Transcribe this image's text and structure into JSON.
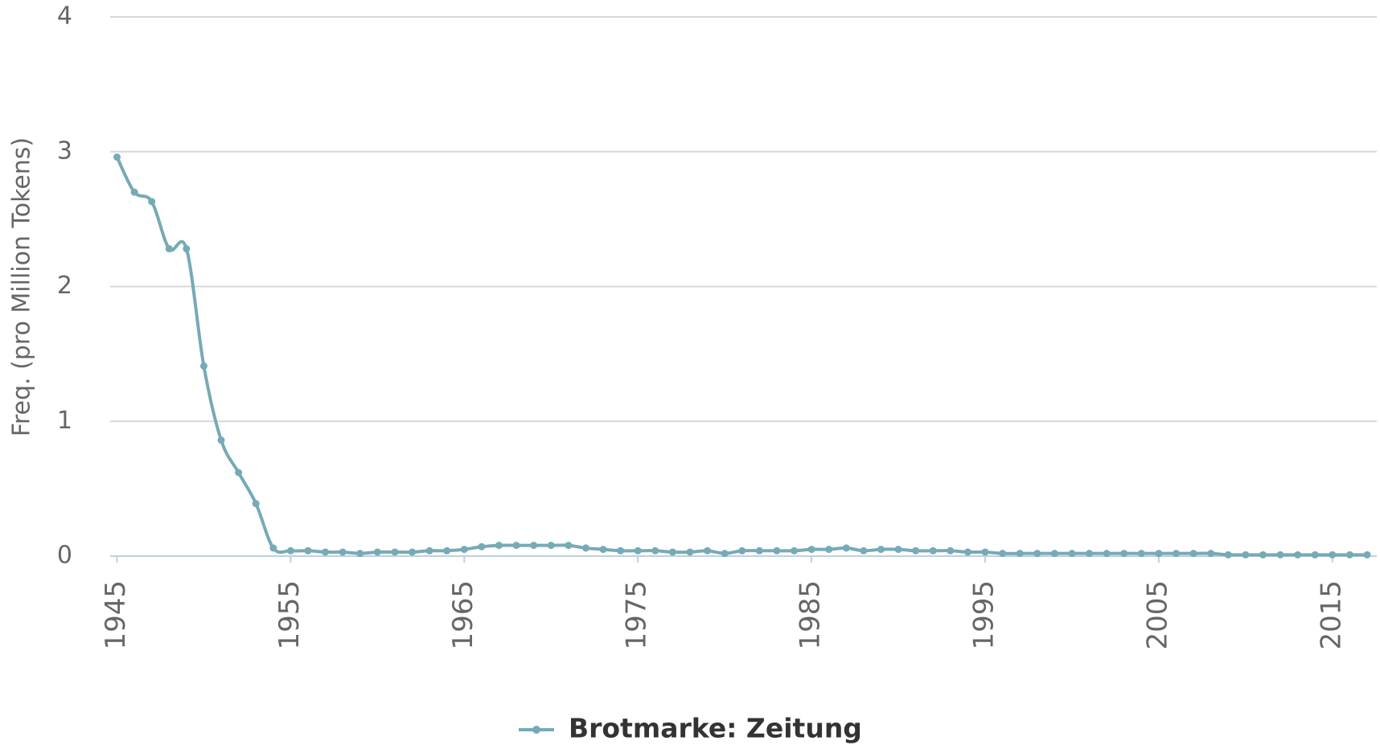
{
  "chart_data": {
    "type": "line",
    "y_label": "Freq. (pro Million Tokens)",
    "x": [
      1945,
      1946,
      1947,
      1948,
      1949,
      1950,
      1951,
      1952,
      1953,
      1954,
      1955,
      1956,
      1957,
      1958,
      1959,
      1960,
      1961,
      1962,
      1963,
      1964,
      1965,
      1966,
      1967,
      1968,
      1969,
      1970,
      1971,
      1972,
      1973,
      1974,
      1975,
      1976,
      1977,
      1978,
      1979,
      1980,
      1981,
      1982,
      1983,
      1984,
      1985,
      1986,
      1987,
      1988,
      1989,
      1990,
      1991,
      1992,
      1993,
      1994,
      1995,
      1996,
      1997,
      1998,
      1999,
      2000,
      2001,
      2002,
      2003,
      2004,
      2005,
      2006,
      2007,
      2008,
      2009,
      2010,
      2011,
      2012,
      2013,
      2014,
      2015,
      2016,
      2017
    ],
    "series": [
      {
        "name": "Brotmarke: Zeitung",
        "color": "#76aab6",
        "values": [
          2.96,
          2.7,
          2.63,
          2.28,
          2.28,
          1.41,
          0.86,
          0.62,
          0.39,
          0.06,
          0.04,
          0.04,
          0.03,
          0.03,
          0.02,
          0.03,
          0.03,
          0.03,
          0.04,
          0.04,
          0.05,
          0.07,
          0.08,
          0.08,
          0.08,
          0.08,
          0.08,
          0.06,
          0.05,
          0.04,
          0.04,
          0.04,
          0.03,
          0.03,
          0.04,
          0.02,
          0.04,
          0.04,
          0.04,
          0.04,
          0.05,
          0.05,
          0.06,
          0.04,
          0.05,
          0.05,
          0.04,
          0.04,
          0.04,
          0.03,
          0.03,
          0.02,
          0.02,
          0.02,
          0.02,
          0.02,
          0.02,
          0.02,
          0.02,
          0.02,
          0.02,
          0.02,
          0.02,
          0.02,
          0.01,
          0.01,
          0.01,
          0.01,
          0.01,
          0.01,
          0.01,
          0.01,
          0.01
        ]
      }
    ],
    "xlim": [
      1945,
      2017
    ],
    "xticks": [
      1945,
      1955,
      1965,
      1975,
      1985,
      1995,
      2005,
      2015
    ],
    "ylim": [
      0,
      4
    ],
    "yticks": [
      0,
      1,
      2,
      3,
      4
    ],
    "grid": true,
    "legend": "bottom"
  }
}
